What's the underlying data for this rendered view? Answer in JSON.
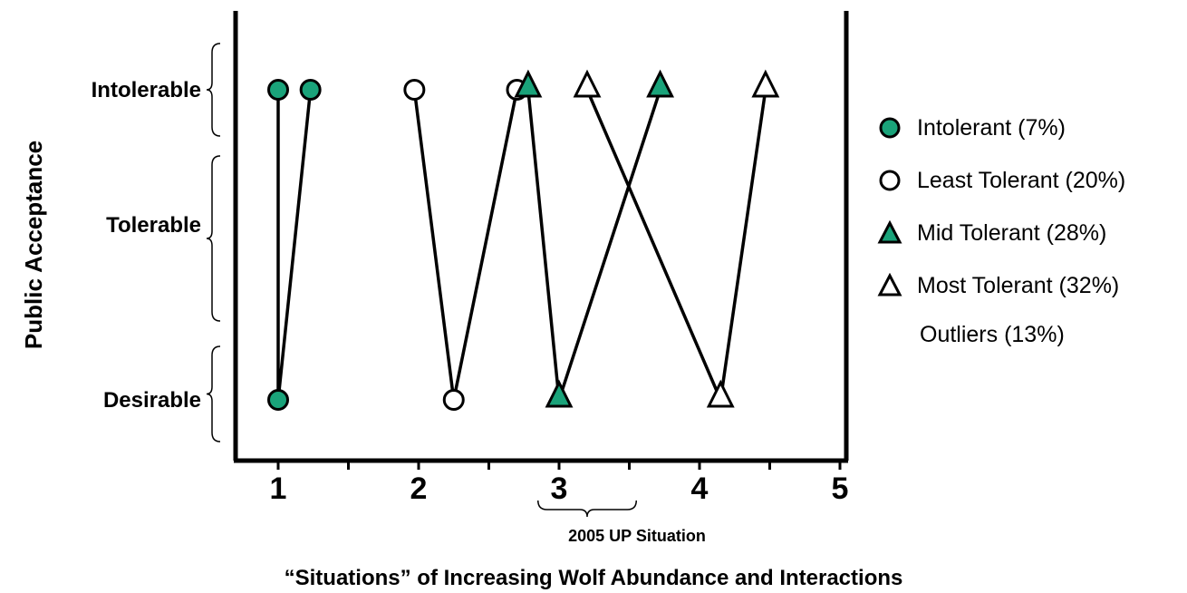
{
  "chart_data": {
    "type": "line",
    "xlabel": "“Situations” of Increasing Wolf Abundance and Interactions",
    "ylabel": "Public Acceptance",
    "xlim": [
      0.7,
      5
    ],
    "x_ticks": [
      "1",
      "2",
      "3",
      "4",
      "5"
    ],
    "y_categories": [
      "Desirable",
      "Tolerable",
      "Intolerable"
    ],
    "annotation": "2005 UP Situation",
    "annotation_range": [
      2.85,
      3.55
    ],
    "series": [
      {
        "name": "Intolerant (7%)",
        "marker": "filled-circle",
        "color": "#1aa37a",
        "points": [
          [
            1.0,
            "Intolerable"
          ],
          [
            1.0,
            "Desirable"
          ],
          [
            1.23,
            "Intolerable"
          ]
        ]
      },
      {
        "name": "Least Tolerant (20%)",
        "marker": "open-circle",
        "color": "#ffffff",
        "points": [
          [
            1.97,
            "Intolerable"
          ],
          [
            2.25,
            "Desirable"
          ],
          [
            2.7,
            "Intolerable"
          ]
        ]
      },
      {
        "name": "Mid Tolerant (28%)",
        "marker": "filled-triangle",
        "color": "#1aa37a",
        "points": [
          [
            2.78,
            "Intolerable"
          ],
          [
            3.0,
            "Desirable"
          ],
          [
            3.72,
            "Intolerable"
          ]
        ]
      },
      {
        "name": "Most Tolerant (32%)",
        "marker": "open-triangle",
        "color": "#ffffff",
        "points": [
          [
            3.2,
            "Intolerable"
          ],
          [
            4.15,
            "Desirable"
          ],
          [
            4.47,
            "Intolerable"
          ]
        ]
      }
    ],
    "extra_legend_text": "Outliers (13%)"
  }
}
